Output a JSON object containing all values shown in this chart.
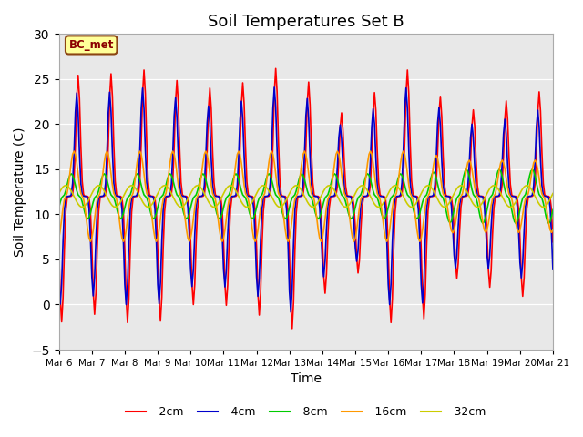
{
  "title": "Soil Temperatures Set B",
  "xlabel": "Time",
  "ylabel": "Soil Temperature (C)",
  "ylim": [
    -5,
    30
  ],
  "annotation": "BC_met",
  "x_tick_labels": [
    "Mar 6",
    "Mar 7",
    "Mar 8",
    "Mar 9",
    "Mar 10",
    "Mar 11",
    "Mar 12",
    "Mar 13",
    "Mar 14",
    "Mar 15",
    "Mar 16",
    "Mar 17",
    "Mar 18",
    "Mar 19",
    "Mar 20",
    "Mar 21"
  ],
  "series_colors": {
    "2cm": "#ff0000",
    "4cm": "#0000cc",
    "8cm": "#00cc00",
    "16cm": "#ff9900",
    "32cm": "#cccc00"
  },
  "peak_hour": 14.0,
  "means": {
    "2cm": 12.0,
    "4cm": 12.0,
    "8cm": 12.0,
    "16cm": 12.0,
    "32cm": 12.0
  },
  "amplitudes": {
    "2cm": [
      14,
      13,
      14,
      14,
      12,
      12,
      13,
      15,
      11,
      8,
      14,
      14,
      9,
      10,
      11,
      12
    ],
    "4cm": [
      12,
      11,
      12,
      12,
      10,
      10,
      11,
      13,
      9,
      7,
      12,
      12,
      8,
      8,
      9,
      10
    ],
    "8cm": [
      2.5,
      2.5,
      2.5,
      2.5,
      2.5,
      2.5,
      2.5,
      2.5,
      2.5,
      2.5,
      2.5,
      2.5,
      3.0,
      3.0,
      3.0,
      3.0
    ],
    "16cm": [
      5,
      5,
      5,
      5,
      5,
      5,
      5,
      5,
      5,
      5,
      5,
      5,
      4,
      4,
      4,
      4
    ],
    "32cm": [
      1.2,
      1.2,
      1.2,
      1.2,
      1.2,
      1.2,
      1.2,
      1.2,
      1.2,
      1.2,
      1.2,
      1.2,
      1.2,
      1.2,
      1.2,
      1.2
    ]
  },
  "phase_hours": {
    "2cm": 0,
    "4cm": 1,
    "8cm": 5,
    "16cm": 3,
    "32cm": 9
  },
  "sharpness": {
    "2cm": 6,
    "4cm": 6,
    "8cm": 2,
    "16cm": 2,
    "32cm": 1
  }
}
